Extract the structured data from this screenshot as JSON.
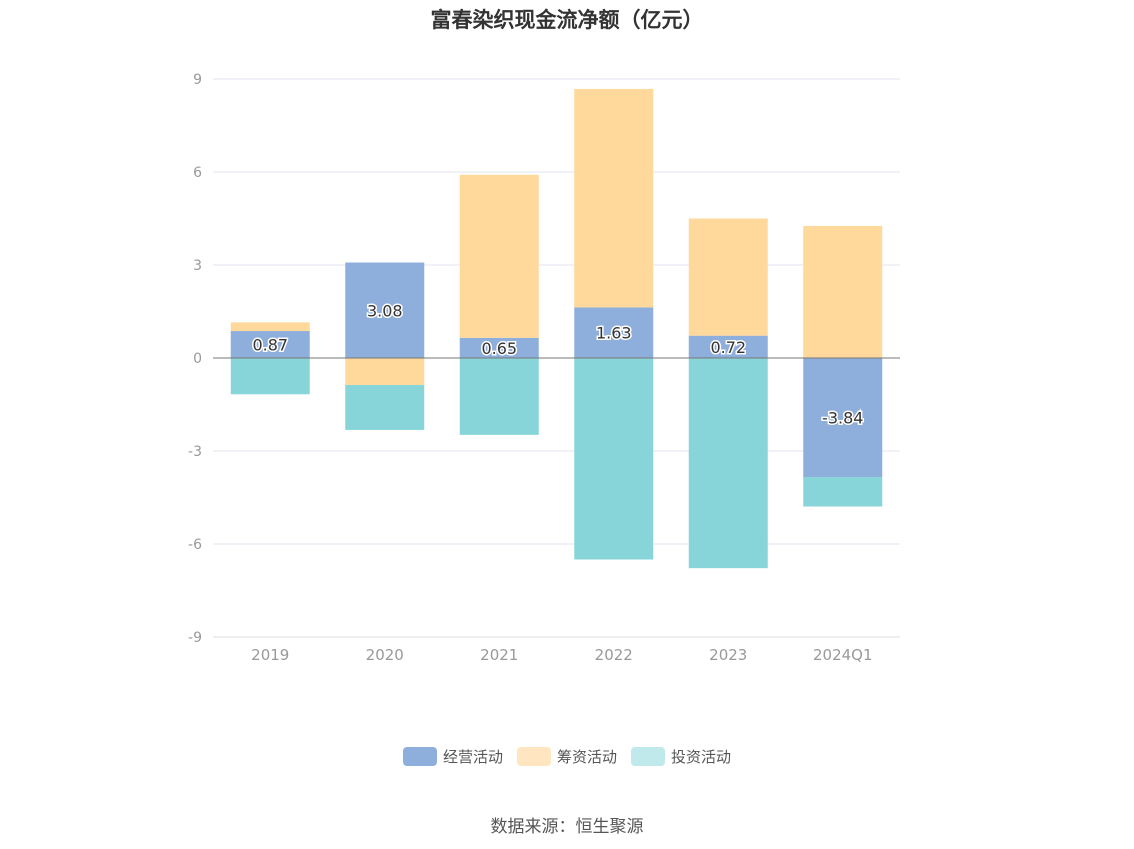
{
  "chart_data": {
    "type": "bar",
    "stacked": true,
    "title": "富春染织现金流净额（亿元）",
    "categories": [
      "2019",
      "2020",
      "2021",
      "2022",
      "2023",
      "2024Q1"
    ],
    "series": [
      {
        "name": "经营活动",
        "color": "#8eaedb",
        "values": [
          0.87,
          3.08,
          0.65,
          1.63,
          0.72,
          -3.84
        ],
        "labeled": true
      },
      {
        "name": "筹资活动",
        "color": "#ffd99b",
        "values": [
          0.28,
          -0.87,
          5.26,
          7.05,
          3.78,
          4.26
        ],
        "labeled": false
      },
      {
        "name": "投资活动",
        "color": "#88d5d9",
        "values": [
          -1.17,
          -1.45,
          -2.48,
          -6.5,
          -6.78,
          -0.95
        ],
        "labeled": false
      }
    ],
    "ylim": [
      -9,
      9
    ],
    "yticks": [
      9,
      6,
      3,
      0,
      -3,
      -6,
      -9
    ],
    "grid": true,
    "legend_position": "bottom"
  },
  "legend_colors": [
    "#8eaedb",
    "#ffe6c0",
    "#c0e9ec"
  ],
  "source": "数据来源：恒生聚源"
}
